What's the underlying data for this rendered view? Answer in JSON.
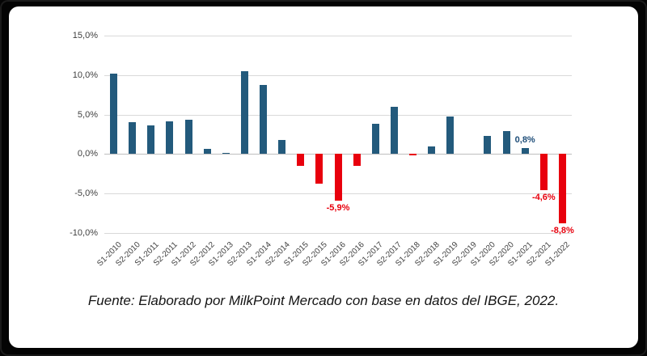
{
  "caption": "Fuente: Elaborado por MilkPoint Mercado con base en datos del IBGE, 2022.",
  "chart_data": {
    "type": "bar",
    "title": "",
    "xlabel": "",
    "ylabel": "",
    "ylim": [
      -10,
      15
    ],
    "grid": true,
    "legend": false,
    "positive_color": "#235a7c",
    "negative_color": "#e8000d",
    "categories": [
      "S1-2010",
      "S2-2010",
      "S1-2011",
      "S2-2011",
      "S1-2012",
      "S2-2012",
      "S1-2013",
      "S2-2013",
      "S1-2014",
      "S2-2014",
      "S1-2015",
      "S2-2015",
      "S1-2016",
      "S2-2016",
      "S1-2017",
      "S2-2017",
      "S1-2018",
      "S2-2018",
      "S1-2019",
      "S2-2019",
      "S1-2020",
      "S2-2020",
      "S1-2021",
      "S2-2021",
      "S1-2022"
    ],
    "values": [
      10.2,
      4.0,
      3.6,
      4.1,
      4.3,
      0.7,
      0.1,
      10.5,
      8.7,
      1.8,
      -1.5,
      -3.8,
      -5.9,
      -1.5,
      3.8,
      6.0,
      -0.2,
      1.0,
      4.8,
      0.0,
      2.3,
      2.9,
      0.8,
      -4.6,
      -8.8
    ],
    "y_ticks": [
      {
        "label": "15,0%",
        "value": 15
      },
      {
        "label": "10,0%",
        "value": 10
      },
      {
        "label": "5,0%",
        "value": 5
      },
      {
        "label": "0,0%",
        "value": 0
      },
      {
        "label": "-5,0%",
        "value": -5
      },
      {
        "label": "-10,0%",
        "value": -10
      }
    ],
    "annotations": [
      {
        "category": "S1-2021",
        "text": "0,8%",
        "color": "#1f4e79",
        "position": "above"
      },
      {
        "category": "S1-2016",
        "text": "-5,9%",
        "color": "#e8000d",
        "position": "below"
      },
      {
        "category": "S2-2021",
        "text": "-4,6%",
        "color": "#e8000d",
        "position": "below"
      },
      {
        "category": "S1-2022",
        "text": "-8,8%",
        "color": "#e8000d",
        "position": "below"
      }
    ]
  }
}
